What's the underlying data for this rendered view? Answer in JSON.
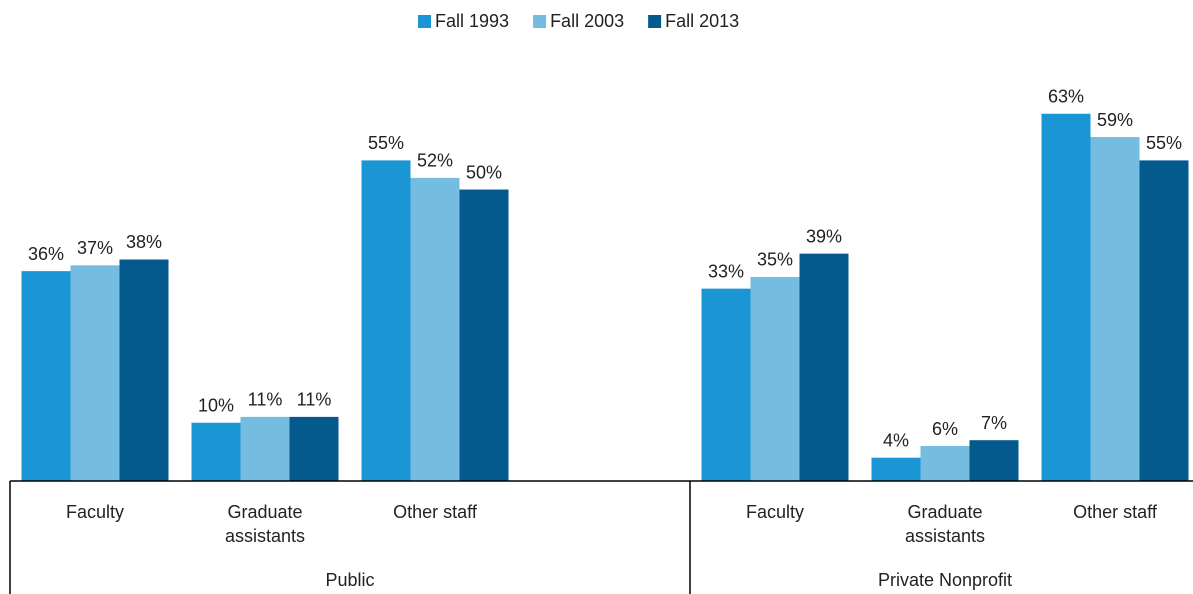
{
  "chart_data": {
    "type": "bar",
    "groups": [
      {
        "name": "Public",
        "categories": [
          "Faculty",
          "Graduate assistants",
          "Other staff",
          null
        ]
      },
      {
        "name": "Private Nonprofit",
        "categories": [
          "Faculty",
          "Graduate assistants",
          "Other staff"
        ]
      }
    ],
    "series": [
      {
        "name": "Fall 1993",
        "color": "#1a96d4",
        "values": [
          36,
          10,
          55,
          null,
          33,
          4,
          63
        ],
        "value_labels": [
          "36%",
          "10%",
          "55%",
          null,
          "33%",
          "4%",
          "63%"
        ]
      },
      {
        "name": "Fall 2003",
        "color": "#74bde0",
        "values": [
          37,
          11,
          52,
          null,
          35,
          6,
          59
        ],
        "value_labels": [
          "37%",
          "11%",
          "52%",
          null,
          "35%",
          "6%",
          "59%"
        ]
      },
      {
        "name": "Fall 2013",
        "color": "#045a8d",
        "values": [
          38,
          11,
          50,
          null,
          39,
          7,
          55
        ],
        "value_labels": [
          "38%",
          "11%",
          "50%",
          null,
          "39%",
          "7%",
          "55%"
        ]
      }
    ],
    "ylim": [
      0,
      82
    ],
    "legend": "top"
  }
}
